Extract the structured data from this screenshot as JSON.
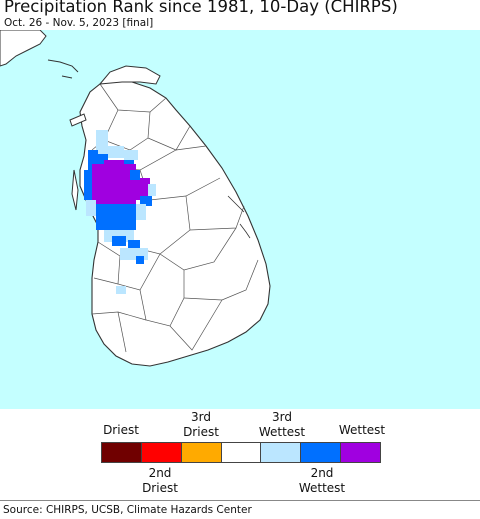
{
  "title": "Precipitation Rank since 1981, 10-Day (CHIRPS)",
  "subtitle": "Oct. 26 - Nov. 5, 2023 [final]",
  "map": {
    "region": "Sri Lanka",
    "colors": {
      "sea": "#c4ffff",
      "land": "#ffffff",
      "border": "#333333"
    }
  },
  "legend": {
    "top_labels": [
      "Driest",
      "3rd Driest",
      "3rd Wettest",
      "Wettest"
    ],
    "bottom_labels": [
      "2nd Driest",
      "2nd Wettest"
    ],
    "classes": [
      {
        "label": "Driest",
        "color": "#700000"
      },
      {
        "label": "2nd Driest",
        "color": "#ff0000"
      },
      {
        "label": "3rd Driest",
        "color": "#ffaa00"
      },
      {
        "label": "Normal",
        "color": "#ffffff"
      },
      {
        "label": "3rd Wettest",
        "color": "#bbe6ff"
      },
      {
        "label": "2nd Wettest",
        "color": "#0070ff"
      },
      {
        "label": "Wettest",
        "color": "#a000e0"
      }
    ]
  },
  "source": "Source: CHIRPS, UCSB, Climate Hazards Center"
}
